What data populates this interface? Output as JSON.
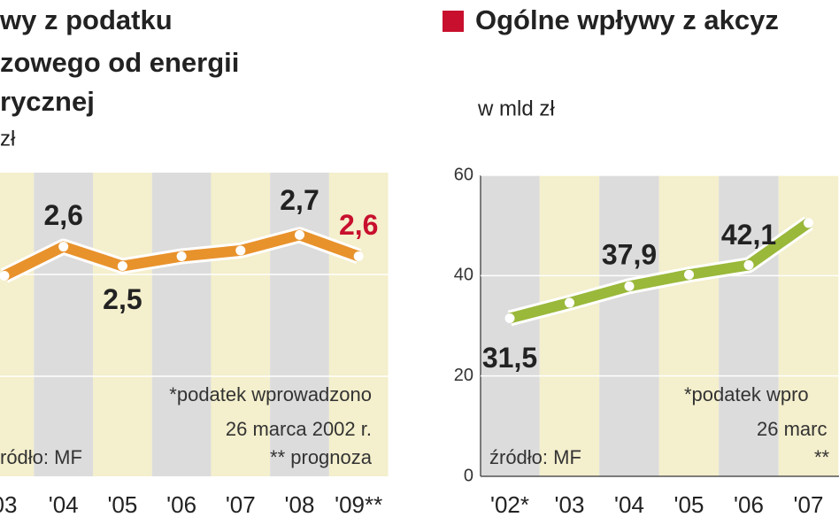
{
  "chart_data": [
    {
      "type": "line",
      "title_lines": [
        "wy z podatku",
        "zowego od energii",
        "rycznej"
      ],
      "subtitle": "zł",
      "categories": [
        "03",
        "'04",
        "'05",
        "'06",
        "'07",
        "'08",
        "'09**"
      ],
      "values": [
        2.45,
        2.6,
        2.5,
        2.55,
        2.58,
        2.66,
        2.55
      ],
      "value_labels": [
        null,
        "2,6",
        "2,5",
        null,
        null,
        "2,7",
        "2,6"
      ],
      "value_label_colors": [
        null,
        "#222222",
        "#222222",
        null,
        null,
        "#222222",
        "#c8102e"
      ],
      "color": "#e8922c",
      "ylim": [
        1.42,
        2.98
      ],
      "annotations": [
        "*podatek wprowadzono",
        "26 marca 2002 r.",
        "** prognoza",
        "ródło: MF"
      ]
    },
    {
      "type": "line",
      "title": "Ogólne wpływy z akcyz",
      "legend_color": "#c8102e",
      "subtitle": "w mld zł",
      "categories": [
        "'02*",
        "'03",
        "'04",
        "'05",
        "'06",
        "'07"
      ],
      "values": [
        31.5,
        34.6,
        37.9,
        40.2,
        42.1,
        50.5
      ],
      "value_labels": [
        "31,5",
        null,
        "37,9",
        null,
        "42,1",
        null
      ],
      "value_label_colors": [
        "#222222",
        null,
        "#222222",
        null,
        "#222222",
        null
      ],
      "color": "#9ab83a",
      "ylim": [
        0,
        60
      ],
      "yticks": [
        0,
        20,
        40,
        60
      ],
      "annotations": [
        "*podatek wpro",
        "26 marc",
        "**",
        "źródło: MF"
      ]
    }
  ]
}
